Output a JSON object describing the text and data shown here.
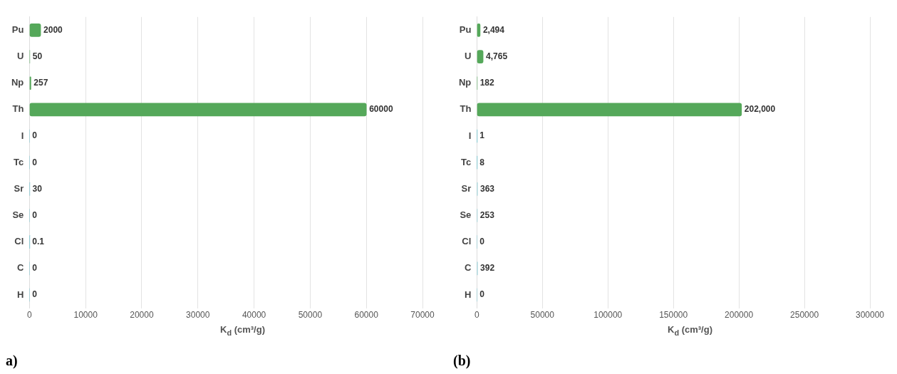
{
  "chart_data": [
    {
      "type": "bar",
      "orientation": "horizontal",
      "xlabel": "K$_{d}$ (cm³/g)",
      "categories": [
        "Pu",
        "U",
        "Np",
        "Th",
        "I",
        "Tc",
        "Sr",
        "Se",
        "Cl",
        "C",
        "H"
      ],
      "values": [
        2000,
        50,
        257,
        60000,
        0,
        0,
        30,
        0,
        0.1,
        0,
        0
      ],
      "colors": [
        "#55a85a",
        "#55a85a",
        "#55a85a",
        "#55a85a",
        "#6cc0cc",
        "#6cc0cc",
        "#6cc0cc",
        "#6cc0cc",
        "#6cc0cc",
        "#6cc0cc",
        "#6cc0cc"
      ],
      "xlim": [
        0,
        70000
      ],
      "xticks": [
        0,
        10000,
        20000,
        30000,
        40000,
        50000,
        60000,
        70000
      ],
      "grid": "x",
      "data_labels": true,
      "annotations": [
        "a)"
      ]
    },
    {
      "type": "bar",
      "orientation": "horizontal",
      "xlabel": "K$_{d}$ (cm³/g)",
      "categories": [
        "Pu",
        "U",
        "Np",
        "Th",
        "I",
        "Tc",
        "Sr",
        "Se",
        "Cl",
        "C",
        "H"
      ],
      "values": [
        2494,
        4765,
        182,
        202000,
        1,
        8,
        363,
        253,
        0,
        392,
        0
      ],
      "value_labels": [
        "2,494",
        "4,765",
        "182",
        "202,000",
        "1",
        "8",
        "363",
        "253",
        "0",
        "392",
        "0"
      ],
      "colors": [
        "#55a85a",
        "#55a85a",
        "#55a85a",
        "#55a85a",
        "#6cc0cc",
        "#6cc0cc",
        "#6cc0cc",
        "#6cc0cc",
        "#6cc0cc",
        "#6cc0cc",
        "#6cc0cc"
      ],
      "xlim": [
        0,
        300000
      ],
      "xticks": [
        0,
        50000,
        100000,
        150000,
        200000,
        250000,
        300000
      ],
      "grid": "x",
      "annotations": [
        "(b)"
      ]
    }
  ]
}
